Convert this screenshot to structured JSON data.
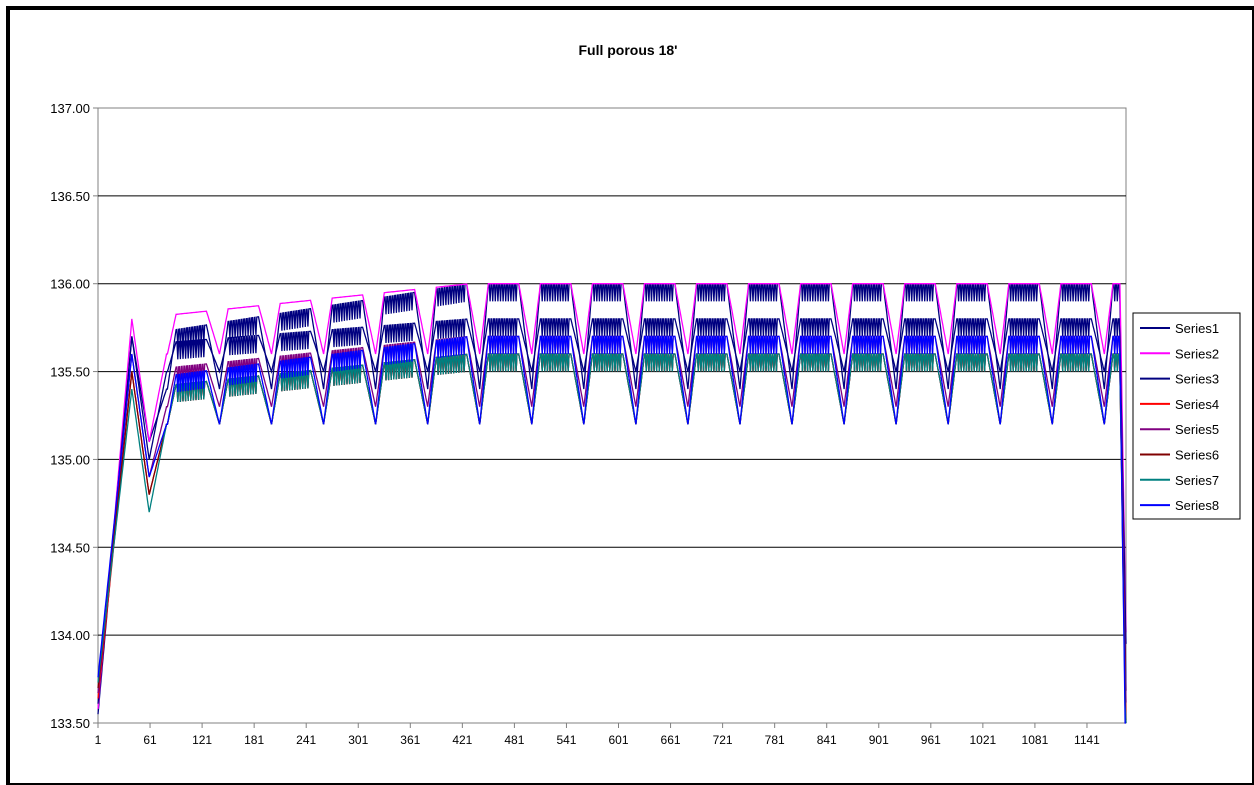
{
  "chart_data": {
    "type": "line",
    "title": "Full porous 18'",
    "xlabel": "",
    "ylabel": "",
    "ylim": [
      133.5,
      137.0
    ],
    "xlim": [
      1,
      1186
    ],
    "y_ticks": [
      "133.50",
      "134.00",
      "134.50",
      "135.00",
      "135.50",
      "136.00",
      "136.50",
      "137.00"
    ],
    "x_ticks": [
      1,
      61,
      121,
      181,
      241,
      301,
      361,
      421,
      481,
      541,
      601,
      661,
      721,
      781,
      841,
      901,
      961,
      1021,
      1081,
      1141
    ],
    "grid": "horizontal major",
    "legend_position": "right",
    "cycle_period": 60,
    "series": [
      {
        "name": "Series1",
        "color": "#000080",
        "low": 135.4,
        "high": 136.0,
        "rise_peak": 135.7,
        "dip_bottom": 135.1,
        "final": 134.0
      },
      {
        "name": "Series2",
        "color": "#ff00ff",
        "low": 135.6,
        "high": 136.0,
        "rise_peak": 135.8,
        "dip_bottom": 135.1,
        "final": 134.3
      },
      {
        "name": "Series3",
        "color": "#000080",
        "low": 135.5,
        "high": 135.8,
        "rise_peak": 135.7,
        "dip_bottom": 135.0,
        "final": 134.2
      },
      {
        "name": "Series4",
        "color": "#ff0000",
        "low": 135.2,
        "high": 135.6,
        "rise_peak": 135.5,
        "dip_bottom": 134.8,
        "final": 133.8
      },
      {
        "name": "Series5",
        "color": "#800080",
        "low": 135.3,
        "high": 135.7,
        "rise_peak": 135.6,
        "dip_bottom": 134.9,
        "final": 133.9
      },
      {
        "name": "Series6",
        "color": "#800000",
        "low": 135.2,
        "high": 135.6,
        "rise_peak": 135.5,
        "dip_bottom": 134.8,
        "final": 133.7
      },
      {
        "name": "Series7",
        "color": "#008080",
        "low": 135.2,
        "high": 135.6,
        "rise_peak": 135.4,
        "dip_bottom": 134.7,
        "final": 133.6
      },
      {
        "name": "Series8",
        "color": "#0000ff",
        "low": 135.2,
        "high": 135.7,
        "rise_peak": 135.6,
        "dip_bottom": 134.9,
        "final": 133.5
      }
    ]
  }
}
